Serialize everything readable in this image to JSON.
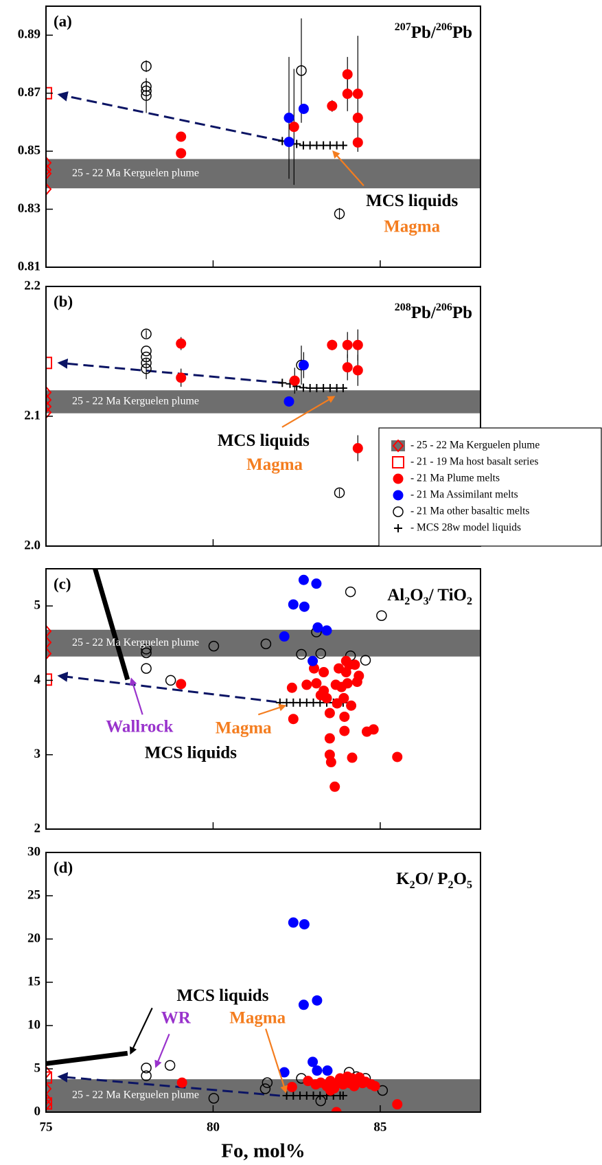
{
  "chart_data": [
    {
      "type": "scatter",
      "panel": "(a)",
      "ratio_label": [
        {
          "text": "207",
          "script": "sup"
        },
        {
          "text": "Pb/"
        },
        {
          "text": "206",
          "script": "sup"
        },
        {
          "text": "Pb"
        }
      ],
      "xlim": [
        75,
        88
      ],
      "xticks": [
        75,
        80,
        85
      ],
      "xtick_labels": false,
      "ylim": [
        0.81,
        0.9
      ],
      "yticks": [
        0.81,
        0.83,
        0.85,
        0.87,
        0.89
      ],
      "band": {
        "range": [
          0.8372,
          0.8473
        ],
        "label": "25 - 22 Ma Kerguelen plume",
        "color": "#6e6e6e"
      },
      "trend": {
        "x": [
          82.07,
          75.4
        ],
        "values": [
          0.8535,
          0.8695
        ],
        "color": "#0b1464"
      },
      "series": [
        {
          "marker": "diamond-open",
          "color": "#ff0000",
          "x": [
            75,
            75,
            75,
            75
          ],
          "values": [
            0.846,
            0.8436,
            0.8423,
            0.8369
          ]
        },
        {
          "marker": "square-open",
          "color": "#ff0000",
          "x": [
            75
          ],
          "values": [
            0.87
          ]
        },
        {
          "marker": "plus",
          "color": "#000000",
          "x": [
            82.07,
            82.3,
            82.5,
            82.7,
            82.9,
            83.1,
            83.3,
            83.5,
            83.7,
            83.89
          ],
          "values": [
            0.8535,
            0.853,
            0.8525,
            0.852,
            0.852,
            0.852,
            0.852,
            0.852,
            0.852,
            0.852
          ]
        },
        {
          "marker": "circle-open",
          "color": "#000000",
          "x": [
            78,
            78,
            78,
            78,
            82.64,
            83.78
          ],
          "values": [
            0.8793,
            0.8723,
            0.8708,
            0.8692,
            0.8778,
            0.8284
          ],
          "errors": [
            0.002,
            0.002,
            0.003,
            0.006,
            0.018,
            0.002
          ]
        },
        {
          "marker": "circle-filled",
          "color": "#ff0000",
          "x": [
            79.04,
            79.04,
            82.42,
            83.56,
            84.02,
            84.02,
            84.33,
            84.33,
            84.33
          ],
          "values": [
            0.855,
            0.8493,
            0.8584,
            0.8656,
            0.8765,
            0.8698,
            0.8698,
            0.8615,
            0.853
          ],
          "errors": [
            null,
            null,
            0.02,
            0.002,
            0.006,
            0.006,
            0.02,
            null,
            null
          ]
        },
        {
          "marker": "circle-filled",
          "color": "#0000ff",
          "x": [
            82.27,
            82.27,
            82.71
          ],
          "values": [
            0.8615,
            0.8532,
            0.8646
          ],
          "errors": [
            0.021,
            null,
            null
          ]
        }
      ],
      "annotations": [
        {
          "text": "MCS liquids",
          "color": "#000000"
        },
        {
          "text": "Magma",
          "color": "#f47d1f"
        }
      ]
    },
    {
      "type": "scatter",
      "panel": "(b)",
      "ratio_label": [
        {
          "text": "208",
          "script": "sup"
        },
        {
          "text": "Pb/"
        },
        {
          "text": "206",
          "script": "sup"
        },
        {
          "text": "Pb"
        }
      ],
      "xlim": [
        75,
        88
      ],
      "xticks": [
        75,
        80,
        85
      ],
      "xtick_labels": false,
      "ylim": [
        2.0,
        2.2
      ],
      "yticks": [
        {
          "value": 2,
          "label": "2.0"
        },
        2.1,
        2.2
      ],
      "band": {
        "range": [
          2.1023,
          2.12
        ],
        "label": "25 - 22 Ma Kerguelen plume",
        "color": "#6e6e6e"
      },
      "trend": {
        "x": [
          82.07,
          75.4
        ],
        "values": [
          2.1257,
          2.1411
        ],
        "color": "#0b1464"
      },
      "series": [
        {
          "marker": "diamond-open",
          "color": "#ff0000",
          "x": [
            75,
            75,
            75,
            75
          ],
          "values": [
            2.1183,
            2.1126,
            2.1074,
            2.1029
          ]
        },
        {
          "marker": "square-open",
          "color": "#ff0000",
          "x": [
            75
          ],
          "values": [
            2.1411
          ]
        },
        {
          "marker": "plus",
          "color": "#000000",
          "x": [
            82.07,
            82.3,
            82.5,
            82.7,
            82.9,
            83.1,
            83.3,
            83.5,
            83.7,
            83.89
          ],
          "values": [
            2.1257,
            2.125,
            2.123,
            2.122,
            2.1217,
            2.1217,
            2.1217,
            2.1217,
            2.1217,
            2.1217
          ]
        },
        {
          "marker": "circle-open",
          "color": "#000000",
          "x": [
            78,
            78,
            78,
            78,
            78,
            82.64,
            83.78
          ],
          "values": [
            2.1634,
            2.1503,
            2.1457,
            2.1411,
            2.1366,
            2.1394,
            2.0411
          ],
          "errors": [
            0.003,
            null,
            null,
            null,
            0.008,
            0.015,
            0.003
          ]
        },
        {
          "marker": "circle-filled",
          "color": "#ff0000",
          "x": [
            79.04,
            79.04,
            82.44,
            83.56,
            84.02,
            84.02,
            84.33,
            84.33,
            84.33
          ],
          "values": [
            2.156,
            2.1297,
            2.1274,
            2.1549,
            2.1549,
            2.1377,
            2.1549,
            2.1354,
            2.0754
          ],
          "errors": [
            0.005,
            0.007,
            0.01,
            0.004,
            0.01,
            0.01,
            0.012,
            0.012,
            0.01
          ]
        },
        {
          "marker": "circle-filled",
          "color": "#0000ff",
          "x": [
            82.27,
            82.71
          ],
          "values": [
            2.1114,
            2.1394
          ],
          "errors": [
            null,
            0.01
          ]
        }
      ],
      "annotations": [
        {
          "text": "MCS liquids",
          "color": "#000000"
        },
        {
          "text": "Magma",
          "color": "#f47d1f"
        }
      ],
      "legend": [
        {
          "name": "- 25 - 22 Ma Kerguelen plume",
          "marker": "band-diamond",
          "color": "#ff0000"
        },
        {
          "name": "- 21 - 19 Ma host basalt series",
          "marker": "square-open",
          "color": "#ff0000"
        },
        {
          "name": "- 21 Ma Plume melts",
          "marker": "circle-filled",
          "color": "#ff0000"
        },
        {
          "name": "- 21 Ma Assimilant melts",
          "marker": "circle-filled",
          "color": "#0000ff"
        },
        {
          "name": "- 21 Ma other basaltic melts",
          "marker": "circle-open",
          "color": "#000000"
        },
        {
          "name": "- MCS 28w model liquids",
          "marker": "plus",
          "color": "#000000"
        }
      ]
    },
    {
      "type": "scatter",
      "panel": "(c)",
      "ratio_label": [
        {
          "text": "Al"
        },
        {
          "text": "2",
          "script": "sub"
        },
        {
          "text": "O"
        },
        {
          "text": "3",
          "script": "sub"
        },
        {
          "text": "/ TiO"
        },
        {
          "text": "2",
          "script": "sub"
        }
      ],
      "xlim": [
        75,
        88
      ],
      "xticks": [
        75,
        80,
        85
      ],
      "xtick_labels": false,
      "ylim": [
        2,
        5.5
      ],
      "yticks": [
        2,
        3,
        4,
        5
      ],
      "band": {
        "range": [
          4.32,
          4.68
        ],
        "label": "25 - 22 Ma Kerguelen plume",
        "color": "#6e6e6e"
      },
      "trend": {
        "x": [
          81.9,
          75.4
        ],
        "values": [
          3.71,
          4.06
        ],
        "color": "#0b1464"
      },
      "wallrock": {
        "x": [
          76.47,
          77.44
        ],
        "values": [
          5.5,
          4.01
        ],
        "color": "#000000"
      },
      "series": [
        {
          "marker": "diamond-open",
          "color": "#ff0000",
          "x": [
            75,
            75,
            75
          ],
          "values": [
            4.66,
            4.51,
            4.36
          ]
        },
        {
          "marker": "square-open",
          "color": "#ff0000",
          "x": [
            75
          ],
          "values": [
            4.01
          ]
        },
        {
          "marker": "plus",
          "color": "#000000",
          "x": [
            82.0,
            82.2,
            82.4,
            82.6,
            82.8,
            83.0,
            83.2,
            83.4,
            83.6,
            83.89
          ],
          "values": [
            3.7,
            3.7,
            3.7,
            3.7,
            3.7,
            3.7,
            3.7,
            3.7,
            3.7,
            3.7
          ]
        },
        {
          "marker": "circle-open",
          "color": "#000000",
          "x": [
            78,
            78,
            78,
            78.73,
            80.02,
            81.58,
            82.64,
            83.09,
            83.22,
            84.11,
            84.11,
            85.04,
            84.56
          ],
          "values": [
            4.42,
            4.37,
            4.16,
            4.0,
            4.46,
            4.49,
            4.35,
            4.65,
            4.36,
            5.19,
            4.33,
            4.87,
            4.27
          ]
        },
        {
          "marker": "circle-filled",
          "color": "#ff0000",
          "x": [
            79.04,
            82.36,
            82.4,
            82.8,
            83.02,
            83.09,
            83.22,
            83.31,
            83.4,
            83.49,
            83.49,
            83.49,
            83.53,
            83.64,
            83.67,
            83.71,
            83.76,
            83.84,
            83.91,
            83.93,
            83.93,
            83.98,
            84.02,
            84.07,
            84.13,
            84.16,
            84.24,
            84.31,
            84.36,
            84.6,
            84.8,
            85.51,
            83.98,
            83.31
          ],
          "values": [
            3.95,
            3.9,
            3.48,
            3.94,
            4.16,
            3.96,
            3.8,
            4.11,
            3.76,
            3.56,
            3.22,
            3.0,
            2.9,
            2.57,
            3.94,
            3.69,
            4.16,
            3.91,
            3.76,
            3.51,
            3.32,
            4.11,
            3.96,
            4.21,
            3.66,
            2.96,
            4.21,
            3.98,
            4.06,
            3.31,
            3.34,
            2.97,
            4.26,
            3.86
          ]
        },
        {
          "marker": "circle-filled",
          "color": "#0000ff",
          "x": [
            82.13,
            82.4,
            82.71,
            82.73,
            83.09,
            83.13,
            83.4,
            82.98
          ],
          "values": [
            4.59,
            5.02,
            5.35,
            4.99,
            5.3,
            4.71,
            4.67,
            4.26
          ]
        }
      ],
      "annotations": [
        {
          "text": "Wallrock",
          "color": "#9933cc"
        },
        {
          "text": "MCS liquids",
          "color": "#000000"
        },
        {
          "text": "Magma",
          "color": "#f47d1f"
        }
      ]
    },
    {
      "type": "scatter",
      "panel": "(d)",
      "ratio_label": [
        {
          "text": "K"
        },
        {
          "text": "2",
          "script": "sub"
        },
        {
          "text": "O/ P"
        },
        {
          "text": "2",
          "script": "sub"
        },
        {
          "text": "O"
        },
        {
          "text": "5",
          "script": "sub"
        }
      ],
      "xlim": [
        75,
        88
      ],
      "xticks": [
        75,
        80,
        85
      ],
      "xtick_labels": true,
      "xlabel": "Fo, mol%",
      "ylim": [
        0,
        30
      ],
      "yticks": [
        0,
        5,
        10,
        15,
        20,
        25,
        30
      ],
      "band": {
        "range": [
          0,
          3.8
        ],
        "label": "25 - 22 Ma Kerguelen plume",
        "color": "#6e6e6e"
      },
      "trend": {
        "x": [
          82.0,
          75.4
        ],
        "values": [
          1.9,
          4.1
        ],
        "color": "#0b1464"
      },
      "wallrock": {
        "x": [
          75,
          77.44
        ],
        "values": [
          5.6,
          6.8
        ],
        "color": "#000000"
      },
      "series": [
        {
          "marker": "diamond-open",
          "color": "#ff0000",
          "x": [
            75,
            75,
            75,
            75
          ],
          "values": [
            4.6,
            2.7,
            1.5,
            0.9
          ]
        },
        {
          "marker": "square-open",
          "color": "#ff0000",
          "x": [
            75,
            75
          ],
          "values": [
            4.0,
            1.0
          ]
        },
        {
          "marker": "plus",
          "color": "#000000",
          "x": [
            82.2,
            82.4,
            82.6,
            82.8,
            83.0,
            83.2,
            83.4,
            83.6,
            83.8,
            83.89
          ],
          "values": [
            1.9,
            1.9,
            1.9,
            1.9,
            1.9,
            1.9,
            1.9,
            1.9,
            1.9,
            1.9
          ]
        },
        {
          "marker": "circle-open",
          "color": "#000000",
          "x": [
            78,
            78,
            78.71,
            80.02,
            81.56,
            81.62,
            82.64,
            84.07,
            84.29,
            84.56,
            85.07,
            83.22
          ],
          "values": [
            5.1,
            4.2,
            5.4,
            1.6,
            2.7,
            3.4,
            3.9,
            4.6,
            4.1,
            3.9,
            2.5,
            1.3
          ]
        },
        {
          "marker": "circle-filled",
          "color": "#ff0000",
          "x": [
            79.07,
            82.36,
            82.84,
            83.07,
            83.22,
            83.4,
            83.51,
            83.62,
            83.73,
            83.8,
            83.89,
            83.96,
            84.02,
            84.09,
            84.16,
            84.22,
            84.29,
            84.38,
            84.47,
            84.56,
            84.73,
            84.84,
            83.51,
            83.69,
            85.51
          ],
          "values": [
            3.4,
            2.9,
            3.6,
            3.2,
            3.4,
            3.0,
            3.6,
            2.75,
            3.35,
            3.9,
            3.2,
            3.6,
            4.1,
            3.35,
            3.9,
            3.0,
            3.6,
            4.0,
            3.35,
            3.5,
            3.2,
            3.0,
            2.5,
            0.0,
            0.9
          ]
        },
        {
          "marker": "circle-filled",
          "color": "#0000ff",
          "x": [
            82.4,
            82.73,
            82.71,
            83.11,
            82.13,
            82.98,
            83.11,
            83.42
          ],
          "values": [
            21.9,
            21.7,
            12.4,
            12.9,
            4.6,
            5.8,
            4.8,
            4.8
          ]
        }
      ],
      "annotations": [
        {
          "text": "MCS liquids",
          "color": "#000000"
        },
        {
          "text": "WR",
          "color": "#9933cc"
        },
        {
          "text": "Magma",
          "color": "#f47d1f"
        }
      ]
    }
  ]
}
